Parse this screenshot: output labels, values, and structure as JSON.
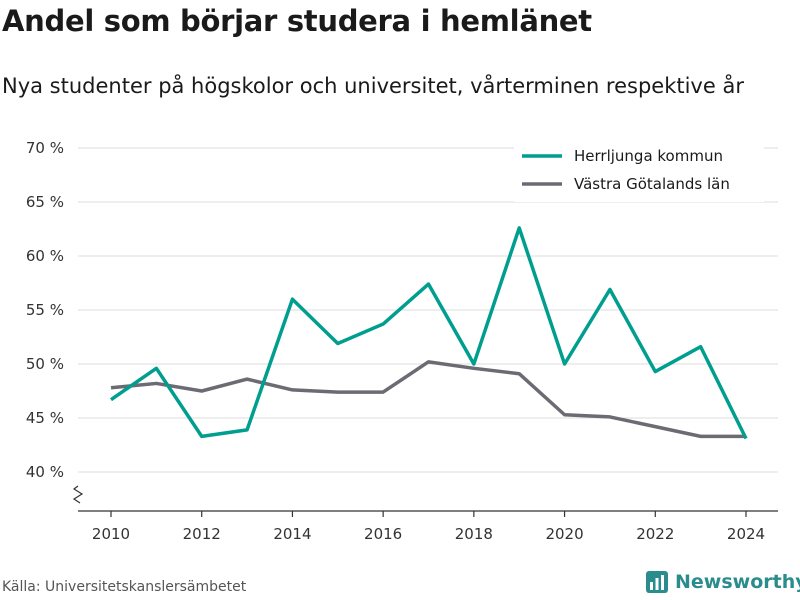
{
  "title": "Andel som börjar studera i hemlänet",
  "subtitle": "Nya studenter på högskolor och universitet, vårterminen respektive år",
  "source": "Källa: Universitetskanslersämbetet",
  "logo_text": "Newsworthy",
  "colors": {
    "series1": "#009e8f",
    "series2": "#6b6b73",
    "grid": "#dddddd",
    "logo": "#2a8c8c"
  },
  "chart_data": {
    "type": "line",
    "x": [
      2010,
      2011,
      2012,
      2013,
      2014,
      2015,
      2016,
      2017,
      2018,
      2019,
      2020,
      2021,
      2022,
      2023,
      2024
    ],
    "series": [
      {
        "name": "Herrljunga kommun",
        "values": [
          46.7,
          49.6,
          43.3,
          43.9,
          56.0,
          51.9,
          53.7,
          57.4,
          50.0,
          62.6,
          50.0,
          56.9,
          49.3,
          51.6,
          43.1
        ]
      },
      {
        "name": "Västra Götalands län",
        "values": [
          47.8,
          48.2,
          47.5,
          48.6,
          47.6,
          47.4,
          47.4,
          50.2,
          49.6,
          49.1,
          45.3,
          45.1,
          44.2,
          43.3,
          43.3
        ]
      }
    ],
    "yticks": [
      "40 %",
      "45 %",
      "50 %",
      "55 %",
      "60 %",
      "65 %",
      "70 %"
    ],
    "ytick_values": [
      40,
      45,
      50,
      55,
      60,
      65,
      70
    ],
    "xticks": [
      "2010",
      "2012",
      "2014",
      "2016",
      "2018",
      "2020",
      "2022",
      "2024"
    ],
    "xtick_values": [
      2010,
      2012,
      2014,
      2016,
      2018,
      2020,
      2022,
      2024
    ],
    "ylim": [
      40,
      70
    ],
    "xlim": [
      2010,
      2024
    ],
    "y_axis_break": true,
    "legend_position": "top-right",
    "grid": true
  }
}
